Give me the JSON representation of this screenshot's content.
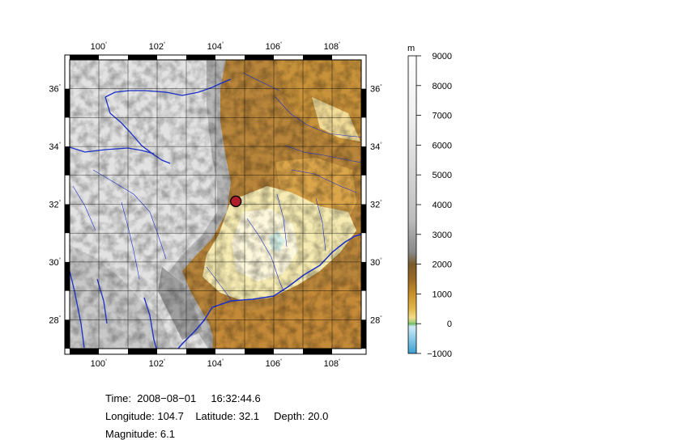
{
  "map": {
    "lon_ticks": [
      {
        "label": "100",
        "value": 100
      },
      {
        "label": "102",
        "value": 102
      },
      {
        "label": "104",
        "value": 104
      },
      {
        "label": "106",
        "value": 106
      },
      {
        "label": "108",
        "value": 108
      }
    ],
    "lat_ticks": [
      {
        "label": "36",
        "value": 36
      },
      {
        "label": "34",
        "value": 34
      },
      {
        "label": "32",
        "value": 32
      },
      {
        "label": "30",
        "value": 30
      },
      {
        "label": "28",
        "value": 28
      }
    ],
    "lon_range": [
      99,
      109
    ],
    "lat_range": [
      27,
      37
    ],
    "degree_symbol": "°",
    "epicenter": {
      "lon": 104.7,
      "lat": 32.1,
      "fill": "#b01e2a"
    }
  },
  "colorbar": {
    "unit": "m",
    "ticks": [
      "9000",
      "8000",
      "7000",
      "6000",
      "5000",
      "4000",
      "3000",
      "2000",
      "1000",
      "0",
      "−1000"
    ],
    "range": [
      -1000,
      9000
    ]
  },
  "info": {
    "time_line": "Time:  2008−08−01     16:32:44.6",
    "coords_line": "Longitude: 104.7    Latitude: 32.1     Depth: 20.0",
    "magnitude_line": "Magnitude: 6.1"
  }
}
